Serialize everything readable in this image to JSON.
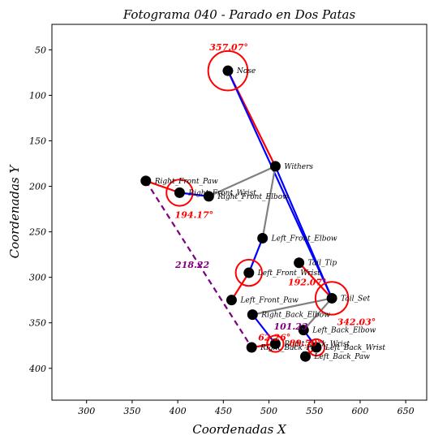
{
  "chart_data": {
    "type": "scatter",
    "title": "Fotograma 040 - Parado en Dos Patas",
    "xlabel": "Coordenadas X",
    "ylabel": "Coordenadas Y",
    "xlim": [
      262,
      673
    ],
    "ylim": [
      435,
      22
    ],
    "y_inverted": true,
    "xticks": [
      300,
      350,
      400,
      450,
      500,
      550,
      600,
      650
    ],
    "yticks": [
      50,
      100,
      150,
      200,
      250,
      300,
      350,
      400
    ],
    "grid": false,
    "keypoints": [
      {
        "name": "Nose",
        "x": 455,
        "y": 73
      },
      {
        "name": "Withers",
        "x": 507,
        "y": 178
      },
      {
        "name": "Right_Front_Paw",
        "x": 365,
        "y": 194
      },
      {
        "name": "Right_Front_Wrist",
        "x": 402,
        "y": 207
      },
      {
        "name": "Right_Front_Elbow",
        "x": 434,
        "y": 211
      },
      {
        "name": "Left_Front_Elbow",
        "x": 493,
        "y": 257
      },
      {
        "name": "Tail_Tip",
        "x": 533,
        "y": 284
      },
      {
        "name": "Left_Front_Wrist",
        "x": 478,
        "y": 295
      },
      {
        "name": "Tail_Set",
        "x": 569,
        "y": 323
      },
      {
        "name": "Left_Front_Paw",
        "x": 459,
        "y": 325
      },
      {
        "name": "Right_Back_Elbow",
        "x": 482,
        "y": 341
      },
      {
        "name": "Left_Back_Elbow",
        "x": 538,
        "y": 358
      },
      {
        "name": "Right_Back_Wrist",
        "x": 507,
        "y": 373
      },
      {
        "name": "Left_Back_Wrist",
        "x": 552,
        "y": 377
      },
      {
        "name": "Right_Back_Paw",
        "x": 481,
        "y": 377
      },
      {
        "name": "Left_Back_Paw",
        "x": 540,
        "y": 387
      }
    ],
    "segments": [
      {
        "from": "Nose",
        "to": "Withers",
        "color": "#ff0000"
      },
      {
        "from": "Nose",
        "to": "Tail_Set",
        "color": "#0000ff"
      },
      {
        "from": "Withers",
        "to": "Tail_Set",
        "color": "#0000ff"
      },
      {
        "from": "Withers",
        "to": "Right_Front_Elbow",
        "color": "#808080"
      },
      {
        "from": "Withers",
        "to": "Left_Front_Elbow",
        "color": "#808080"
      },
      {
        "from": "Right_Front_Elbow",
        "to": "Right_Front_Wrist",
        "color": "#0000ff"
      },
      {
        "from": "Right_Front_Wrist",
        "to": "Right_Front_Paw",
        "color": "#ff0000"
      },
      {
        "from": "Left_Front_Elbow",
        "to": "Left_Front_Wrist",
        "color": "#0000ff"
      },
      {
        "from": "Left_Front_Wrist",
        "to": "Left_Front_Paw",
        "color": "#ff0000"
      },
      {
        "from": "Tail_Set",
        "to": "Tail_Tip",
        "color": "#ff0000"
      },
      {
        "from": "Tail_Set",
        "to": "Right_Back_Elbow",
        "color": "#808080"
      },
      {
        "from": "Tail_Set",
        "to": "Left_Back_Elbow",
        "color": "#808080"
      },
      {
        "from": "Right_Back_Elbow",
        "to": "Right_Back_Wrist",
        "color": "#0000ff"
      },
      {
        "from": "Right_Back_Wrist",
        "to": "Right_Back_Paw",
        "color": "#ff0000"
      },
      {
        "from": "Left_Back_Elbow",
        "to": "Left_Back_Wrist",
        "color": "#0000ff"
      },
      {
        "from": "Left_Back_Wrist",
        "to": "Left_Back_Paw",
        "color": "#ff0000"
      }
    ],
    "dashed_lines": [
      {
        "from": "Right_Front_Paw",
        "to": "Right_Back_Paw",
        "color": "#800080"
      }
    ],
    "angle_markers": [
      {
        "at": "Nose",
        "radius": 12
      },
      {
        "at": "Right_Front_Wrist",
        "radius": 8
      },
      {
        "at": "Left_Front_Wrist",
        "radius": 8
      },
      {
        "at": "Tail_Set",
        "radius": 10
      },
      {
        "at": "Right_Back_Wrist",
        "radius": 5
      },
      {
        "at": "Left_Back_Wrist",
        "radius": 5
      }
    ],
    "angle_annotations": [
      {
        "text": "357.07°",
        "x": 456,
        "y": 47,
        "color": "#ff0000"
      },
      {
        "text": "194.17°",
        "x": 418,
        "y": 231,
        "color": "#ff0000"
      },
      {
        "text": "218.22",
        "x": 416,
        "y": 286,
        "color": "#800080"
      },
      {
        "text": "192.07°",
        "x": 542,
        "y": 305,
        "color": "#ff0000"
      },
      {
        "text": "342.03°",
        "x": 596,
        "y": 349,
        "color": "#ff0000"
      },
      {
        "text": "101.23",
        "x": 524,
        "y": 354,
        "color": "#800080"
      },
      {
        "text": "62.26°",
        "x": 506,
        "y": 366,
        "color": "#ff0000"
      },
      {
        "text": "89.50°",
        "x": 540,
        "y": 372,
        "color": "#ff0000"
      }
    ],
    "colors": {
      "red": "#ff0000",
      "blue": "#0000ff",
      "gray": "#808080",
      "purple": "#800080",
      "keypoint": "#000000"
    }
  }
}
